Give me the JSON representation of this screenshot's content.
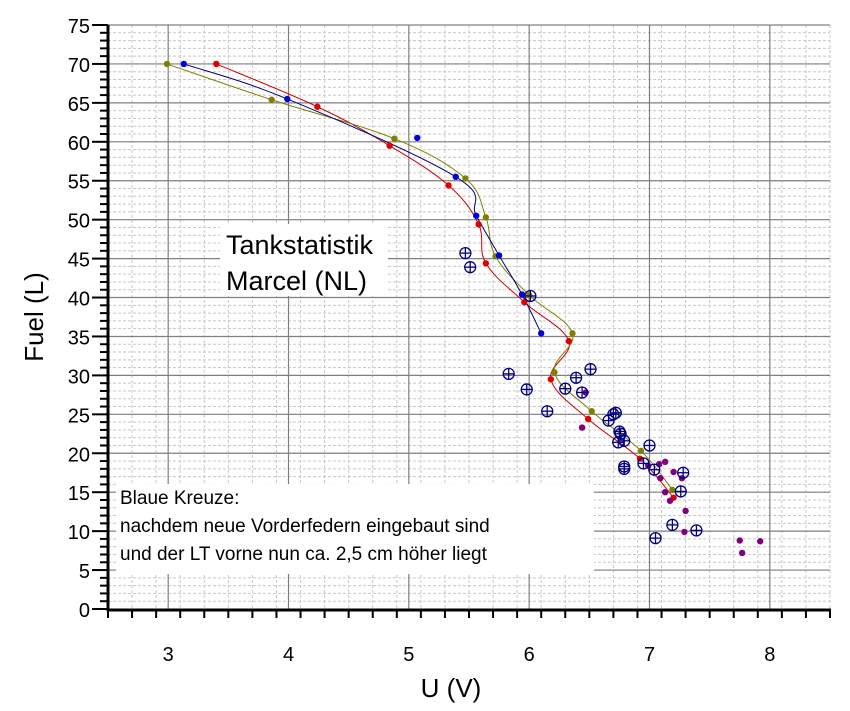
{
  "chart_data": {
    "type": "scatter",
    "title": "",
    "xlabel": "U (V)",
    "ylabel": "Fuel (L)",
    "xlim": [
      2.5,
      8.5
    ],
    "ylim": [
      0,
      75
    ],
    "xticks": [
      "3",
      "4",
      "5",
      "6",
      "7",
      "8"
    ],
    "yticks": [
      "0",
      "5",
      "10",
      "15",
      "20",
      "25",
      "30",
      "35",
      "40",
      "45",
      "50",
      "55",
      "60",
      "65",
      "70",
      "75"
    ],
    "xtick_values": [
      3,
      4,
      5,
      6,
      7,
      8
    ],
    "ytick_values": [
      0,
      5,
      10,
      15,
      20,
      25,
      30,
      35,
      40,
      45,
      50,
      55,
      60,
      65,
      70,
      75
    ],
    "x_minor_step": 0.2,
    "y_minor_step": 1,
    "grid": true,
    "annotations": {
      "title_box": [
        "Tankstatistik",
        "Marcel (NL)"
      ],
      "note_box": [
        "Blaue Kreuze:",
        "nachdem neue Vorderfedern eingebaut sind",
        "und der LT vorne nun ca. 2,5 cm höher liegt"
      ]
    },
    "series": [
      {
        "name": "red",
        "color": "#e00000",
        "line_color": "#cc0000",
        "marker": "dot",
        "connected": true,
        "x": [
          3.4,
          4.24,
          4.84,
          5.33,
          5.58,
          5.64,
          5.96,
          6.33,
          6.18,
          6.49,
          6.92,
          7.2
        ],
        "y": [
          70,
          64.5,
          59.5,
          54.4,
          49.4,
          44.4,
          39.4,
          34.4,
          29.5,
          24.4,
          19.3,
          14.3
        ]
      },
      {
        "name": "olive",
        "color": "#808000",
        "line_color": "#808000",
        "marker": "dot",
        "connected": true,
        "x": [
          2.99,
          3.86,
          4.88,
          5.47,
          5.64,
          5.72,
          6.0,
          6.36,
          6.21,
          6.52,
          6.93,
          7.19
        ],
        "y": [
          70,
          65.4,
          60.4,
          55.3,
          50.3,
          45.3,
          40.3,
          35.4,
          30.4,
          25.4,
          20.3,
          15.3
        ]
      },
      {
        "name": "blue",
        "color": "#0000dd",
        "line_color": "#000080",
        "marker": "dot",
        "connected": true,
        "x": [
          3.13,
          3.99,
          5.39,
          5.56,
          5.75,
          5.94,
          6.1
        ],
        "y": [
          70,
          65.5,
          55.5,
          50.5,
          45.4,
          40.4,
          35.4
        ]
      },
      {
        "name": "blue-single",
        "color": "#0000dd",
        "marker": "dot",
        "connected": false,
        "x": [
          5.07
        ],
        "y": [
          60.5
        ]
      },
      {
        "name": "purple",
        "color": "#800080",
        "marker": "dot",
        "connected": false,
        "x": [
          6.47,
          6.44,
          6.99,
          7.08,
          7.13,
          7.2,
          7.09,
          7.27,
          7.13,
          7.17,
          7.3,
          7.29,
          7.75,
          7.92,
          7.77
        ],
        "y": [
          27.8,
          23.3,
          18.4,
          18.6,
          18.9,
          17.6,
          16.8,
          16.8,
          15.0,
          13.9,
          12.6,
          9.9,
          8.8,
          8.7,
          7.2
        ]
      },
      {
        "name": "blue-crosses",
        "color": "#000080",
        "marker": "circle-plus",
        "connected": false,
        "x": [
          5.47,
          5.51,
          6.01,
          5.83,
          5.98,
          6.51,
          6.39,
          6.3,
          6.44,
          6.15,
          6.72,
          6.7,
          6.66,
          6.75,
          6.76,
          6.79,
          6.74,
          7.0,
          6.79,
          6.79,
          6.95,
          7.04,
          7.28,
          7.26,
          7.19,
          7.39,
          7.05
        ],
        "y": [
          45.7,
          43.9,
          40.2,
          30.2,
          28.2,
          30.8,
          29.7,
          28.3,
          27.8,
          25.4,
          25.2,
          25.0,
          24.2,
          22.8,
          22.5,
          21.6,
          21.4,
          21.0,
          18.3,
          18.0,
          18.7,
          17.9,
          17.5,
          15.1,
          10.8,
          10.1,
          9.1
        ]
      }
    ]
  },
  "colors": {
    "major_grid": "#808080",
    "minor_grid": "#c8c8c8",
    "axis": "#000000"
  }
}
